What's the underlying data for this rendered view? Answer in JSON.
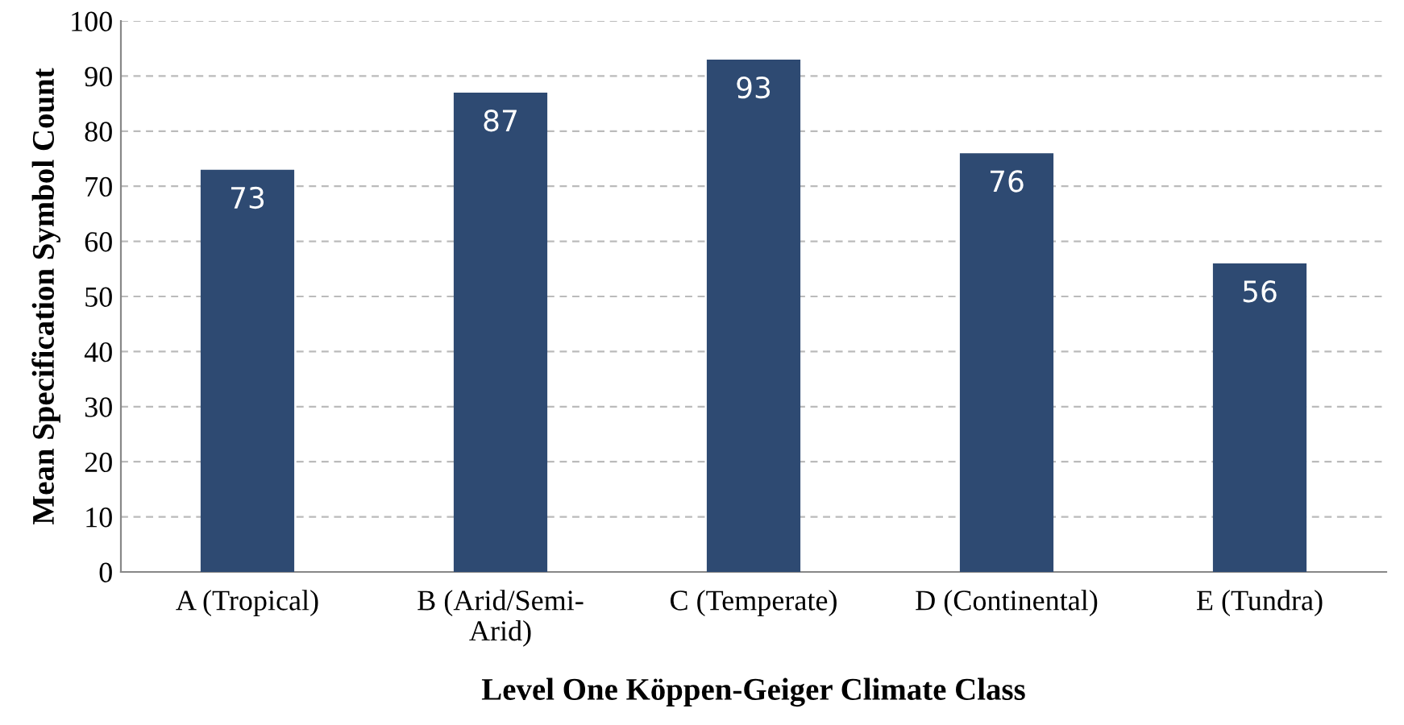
{
  "chart_data": {
    "type": "bar",
    "xlabel": "Level One Köppen-Geiger Climate Class",
    "ylabel": "Mean Specification Symbol Count",
    "categories": [
      "A (Tropical)",
      "B (Arid/Semi-\nArid)",
      "C (Temperate)",
      "D (Continental)",
      "E (Tundra)"
    ],
    "values": [
      73,
      87,
      93,
      76,
      56
    ],
    "color": "#2e4a72",
    "ylim": [
      0,
      100
    ],
    "yticks": [
      0,
      10,
      20,
      30,
      40,
      50,
      60,
      70,
      80,
      90,
      100
    ],
    "grid": "y",
    "data_labels": true
  }
}
